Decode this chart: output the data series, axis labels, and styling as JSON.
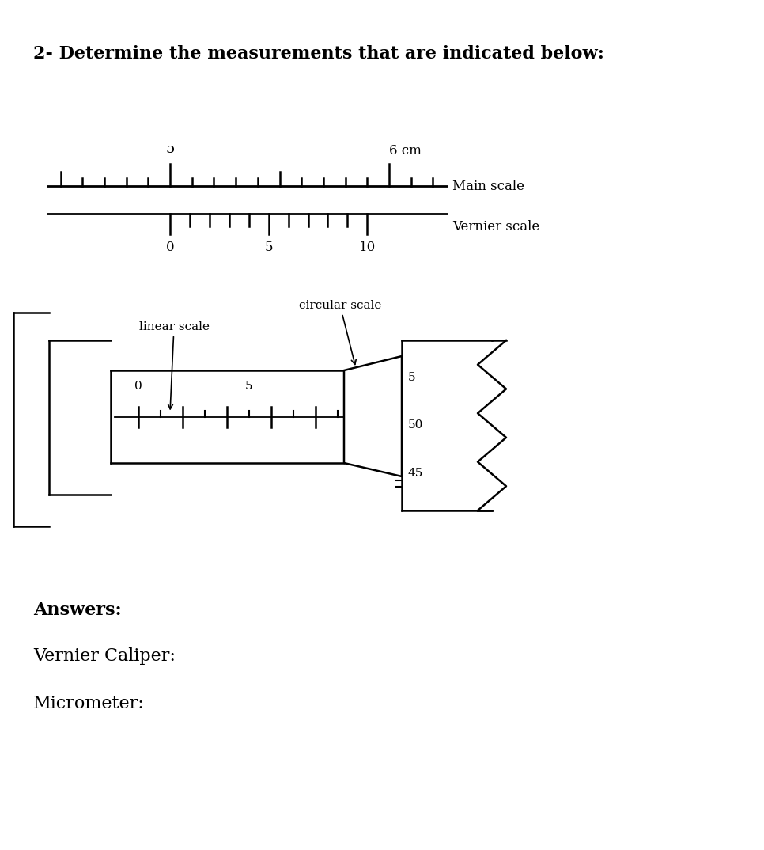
{
  "title": "2- Determine the measurements that are indicated below:",
  "bg_color": "#ffffff",
  "text_color": "#000000",
  "title_fontsize": 16,
  "answers_label": "Answers:",
  "vernier_label": "Vernier Caliper:",
  "micrometer_label": "Micrometer:",
  "vernier_main_label": "5",
  "vernier_6cm_label": "6 cm",
  "main_scale_label": "Main scale",
  "vernier_scale_label": "Vernier scale",
  "vernier_tick_0": "0",
  "vernier_tick_5": "5",
  "vernier_tick_10": "10",
  "micro_linear_label": "linear scale",
  "micro_circular_label": "circular scale",
  "micro_lin_0": "0",
  "micro_lin_5": "5",
  "micro_circ_5": "5",
  "micro_circ_50": "50",
  "micro_circ_45": "45"
}
